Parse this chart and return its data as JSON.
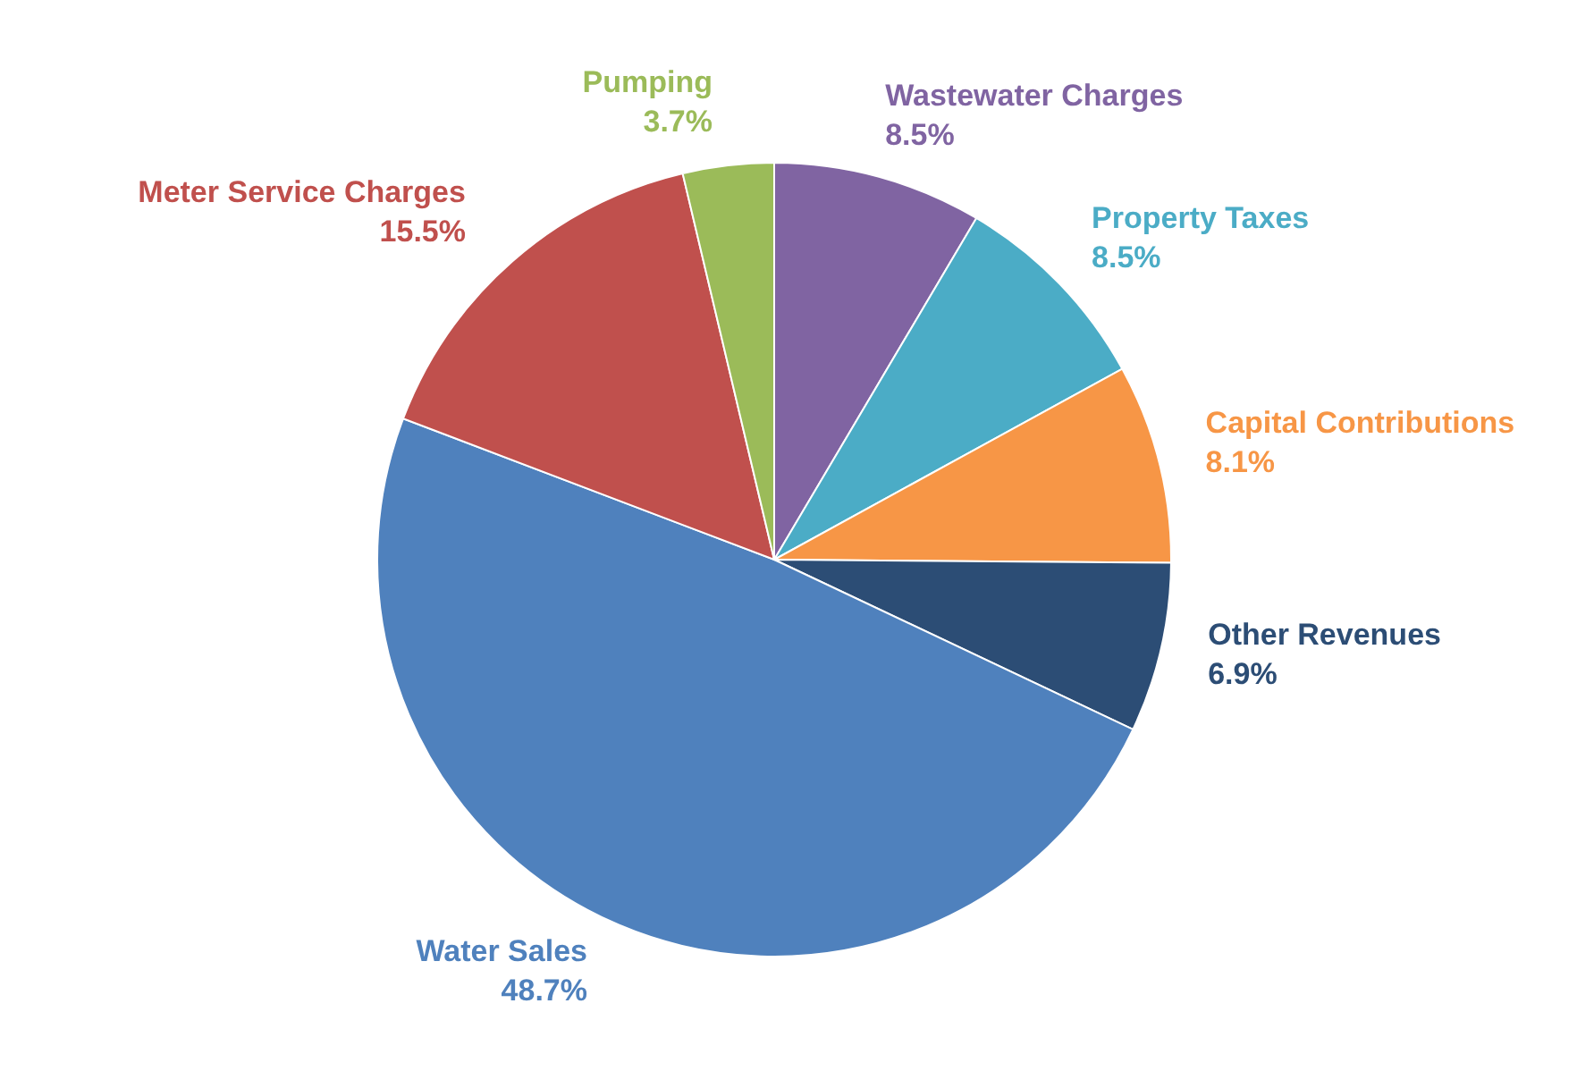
{
  "chart_data": {
    "type": "pie",
    "categories": [
      "Wastewater Charges",
      "Property Taxes",
      "Capital Contributions",
      "Other Revenues",
      "Water Sales",
      "Meter Service Charges",
      "Pumping"
    ],
    "values": [
      8.5,
      8.5,
      8.1,
      6.9,
      48.7,
      15.5,
      3.7
    ],
    "value_labels": [
      "8.5%",
      "8.5%",
      "8.1%",
      "6.9%",
      "48.7%",
      "15.5%",
      "3.7%"
    ],
    "colors": [
      "#8064a2",
      "#4bacc6",
      "#f79646",
      "#2c4d75",
      "#4f81bd",
      "#c0504d",
      "#9bbb59"
    ],
    "legend": false
  }
}
